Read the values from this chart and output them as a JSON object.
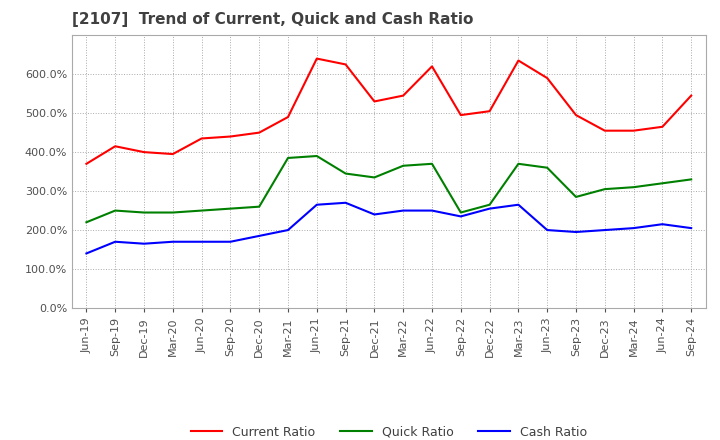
{
  "title": "[2107]  Trend of Current, Quick and Cash Ratio",
  "x_labels": [
    "Jun-19",
    "Sep-19",
    "Dec-19",
    "Mar-20",
    "Jun-20",
    "Sep-20",
    "Dec-20",
    "Mar-21",
    "Jun-21",
    "Sep-21",
    "Dec-21",
    "Mar-22",
    "Jun-22",
    "Sep-22",
    "Dec-22",
    "Mar-23",
    "Jun-23",
    "Sep-23",
    "Dec-23",
    "Mar-24",
    "Jun-24",
    "Sep-24"
  ],
  "current_ratio": [
    370,
    415,
    400,
    395,
    435,
    440,
    450,
    490,
    640,
    625,
    530,
    545,
    620,
    495,
    505,
    635,
    590,
    495,
    455,
    455,
    465,
    545
  ],
  "quick_ratio": [
    220,
    250,
    245,
    245,
    250,
    255,
    260,
    385,
    390,
    345,
    335,
    365,
    370,
    245,
    265,
    370,
    360,
    285,
    305,
    310,
    320,
    330
  ],
  "cash_ratio": [
    140,
    170,
    165,
    170,
    170,
    170,
    185,
    200,
    265,
    270,
    240,
    250,
    250,
    235,
    255,
    265,
    200,
    195,
    200,
    205,
    215,
    205
  ],
  "current_color": "#FF0000",
  "quick_color": "#008000",
  "cash_color": "#0000FF",
  "ylim": [
    0,
    700
  ],
  "yticks": [
    0,
    100,
    200,
    300,
    400,
    500,
    600
  ],
  "bg_color": "#FFFFFF",
  "grid_color": "#AAAAAA",
  "title_color": "#404040",
  "legend_labels": [
    "Current Ratio",
    "Quick Ratio",
    "Cash Ratio"
  ]
}
